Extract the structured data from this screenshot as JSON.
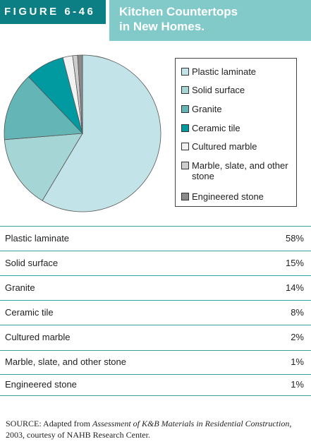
{
  "figure_label": "FIGURE 6-46",
  "chart_data": {
    "type": "pie",
    "title": "Kitchen Countertops in New Homes.",
    "categories": [
      "Plastic laminate",
      "Solid surface",
      "Granite",
      "Ceramic tile",
      "Cultured marble",
      "Marble, slate, and other stone",
      "Engineered stone"
    ],
    "values": [
      58,
      15,
      14,
      8,
      2,
      1,
      1
    ],
    "value_labels": [
      "58%",
      "15%",
      "14%",
      "8%",
      "2%",
      "1%",
      "1%"
    ],
    "colors": [
      "#c2e3e7",
      "#a6d5d6",
      "#63b6b5",
      "#009aa0",
      "#f2f2f2",
      "#cdcdcd",
      "#8a8a8a"
    ],
    "legend": "right"
  },
  "source": {
    "label": "SOURCE:",
    "text_before": "Adapted from",
    "citation": "Assessment of K&B Materials in Residential Construction,",
    "text_after": "2003, courtesy of NAHB Research Center."
  }
}
